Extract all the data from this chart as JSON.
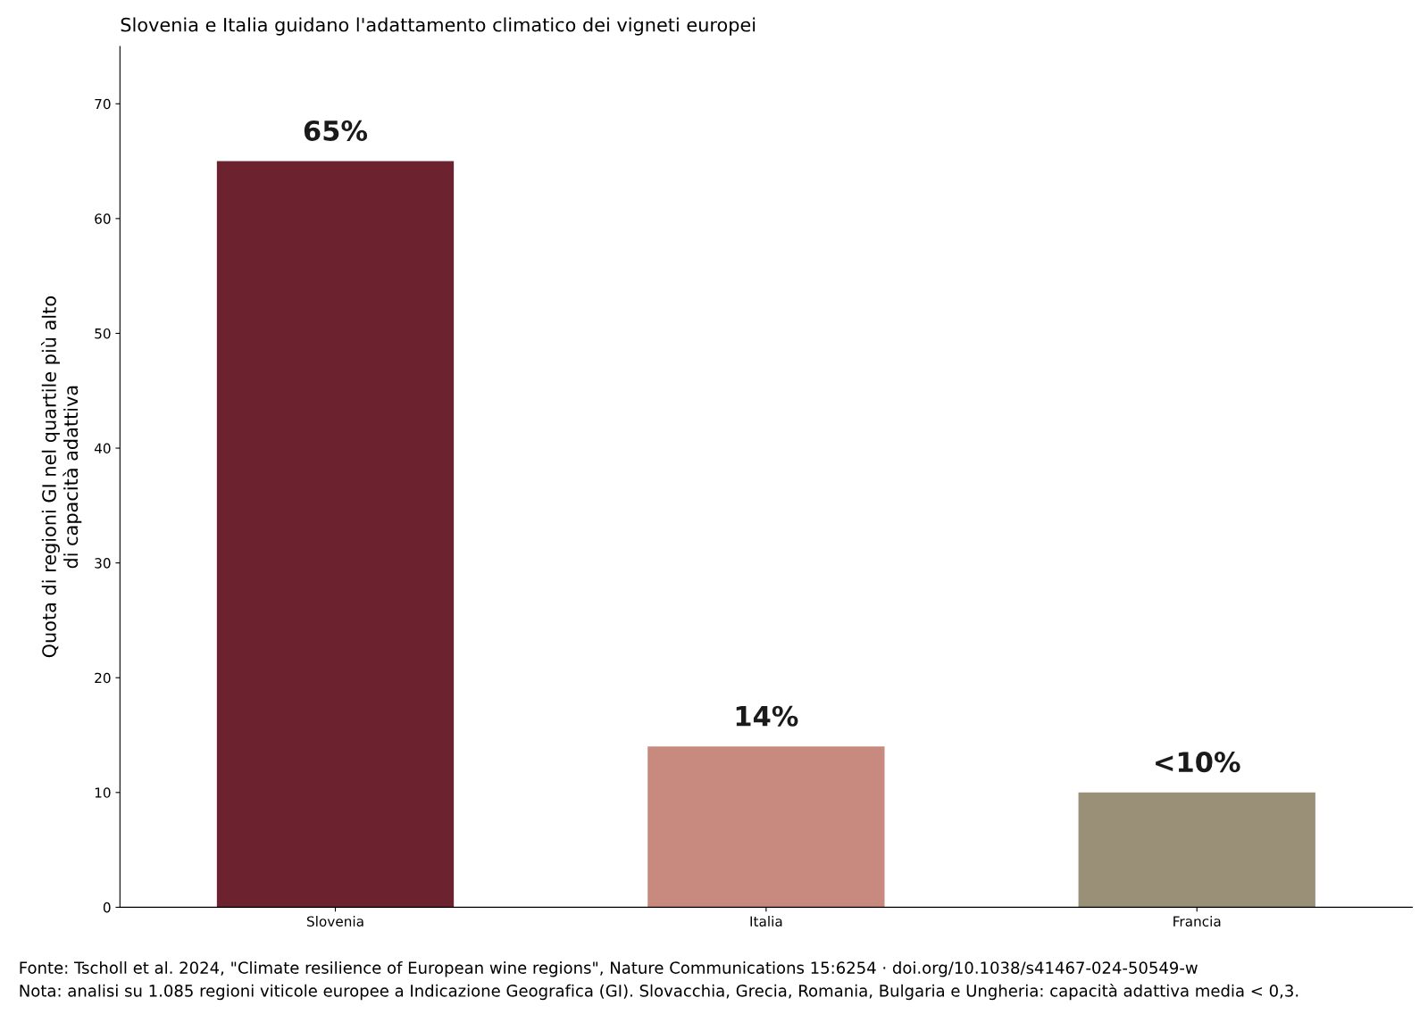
{
  "chart_data": {
    "type": "bar",
    "title": "Slovenia e Italia guidano l'adattamento climatico dei vigneti europei",
    "ylabel": "Quota di regioni GI nel quartile più alto\ndi capacità adattiva",
    "categories": [
      "Slovenia",
      "Italia",
      "Francia"
    ],
    "values": [
      65,
      14,
      10
    ],
    "colors": [
      "#6d222f",
      "#c8897e",
      "#9a8f77"
    ],
    "value_labels": [
      "65%",
      "14%",
      "<10%"
    ],
    "ylim": [
      0,
      75
    ],
    "yticks": [
      0,
      10,
      20,
      30,
      40,
      50,
      60,
      70
    ],
    "grid": false,
    "legend": false,
    "annotations": [
      "Fonte: Tscholl et al. 2024, \"Climate resilience of European wine regions\", Nature Communications 15:6254 · doi.org/10.1038/s41467-024-50549-w",
      "Nota: analisi su 1.085 regioni viticole europee a Indicazione Geografica (GI). Slovacchia, Grecia, Romania, Bulgaria e Ungheria: capacità adattiva media < 0,3."
    ]
  }
}
